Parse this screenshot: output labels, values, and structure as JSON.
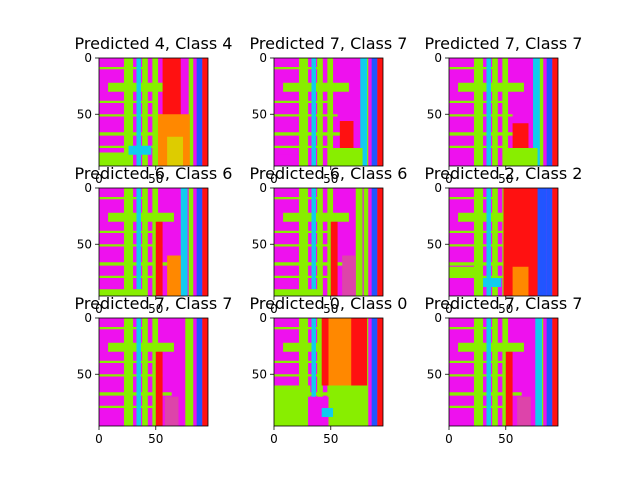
{
  "chart_data": [
    {
      "type": "heatmap",
      "title": "Predicted 4, Class 4",
      "xticks": [
        0,
        50
      ],
      "yticks": [
        0,
        50
      ],
      "extent": [
        0,
        96
      ],
      "colormap": "hsv",
      "image": "feature-map stripe pattern; magenta background, green/lime crossing bands, cyan and blue vertical stripes, red block right of center"
    },
    {
      "type": "heatmap",
      "title": "Predicted 7, Class 7",
      "xticks": [
        0,
        50
      ],
      "yticks": [
        0,
        50
      ],
      "extent": [
        0,
        96
      ],
      "colormap": "hsv"
    },
    {
      "type": "heatmap",
      "title": "Predicted 7, Class 7",
      "xticks": [
        0,
        50
      ],
      "yticks": [
        0,
        50
      ],
      "extent": [
        0,
        96
      ],
      "colormap": "hsv"
    },
    {
      "type": "heatmap",
      "title": "Predicted 6, Class 6",
      "xticks": [
        0,
        50
      ],
      "yticks": [
        0,
        50
      ],
      "extent": [
        0,
        96
      ],
      "colormap": "hsv"
    },
    {
      "type": "heatmap",
      "title": "Predicted 6, Class 6",
      "xticks": [
        0,
        50
      ],
      "yticks": [
        0,
        50
      ],
      "extent": [
        0,
        96
      ],
      "colormap": "hsv"
    },
    {
      "type": "heatmap",
      "title": "Predicted 2, Class 2",
      "xticks": [
        0,
        50
      ],
      "yticks": [
        0,
        50
      ],
      "extent": [
        0,
        96
      ],
      "colormap": "hsv"
    },
    {
      "type": "heatmap",
      "title": "Predicted 7, Class 7",
      "xticks": [
        0,
        50
      ],
      "yticks": [
        0,
        50
      ],
      "extent": [
        0,
        96
      ],
      "colormap": "hsv"
    },
    {
      "type": "heatmap",
      "title": "Predicted 0, Class 0",
      "xticks": [
        0,
        50
      ],
      "yticks": [
        0,
        50
      ],
      "extent": [
        0,
        96
      ],
      "colormap": "hsv"
    },
    {
      "type": "heatmap",
      "title": "Predicted 7, Class 7",
      "xticks": [
        0,
        50
      ],
      "yticks": [
        0,
        50
      ],
      "extent": [
        0,
        96
      ],
      "colormap": "hsv"
    }
  ],
  "palette": {
    "magenta": "#ee11ee",
    "lime": "#88ee00",
    "cyan": "#11ccee",
    "blue": "#2255ff",
    "red": "#ff1111",
    "orange": "#ff8800",
    "green": "#22ee11",
    "pink": "#dd44aa",
    "yellow": "#ddcc00"
  }
}
